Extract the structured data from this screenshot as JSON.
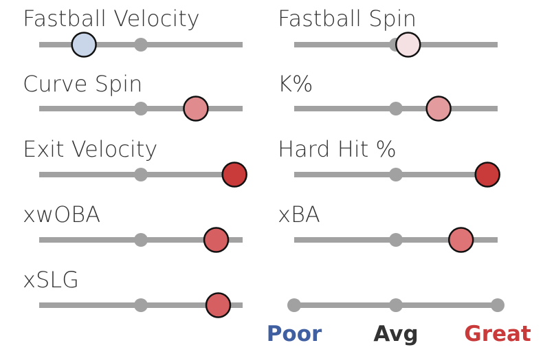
{
  "chart_data": {
    "type": "percentile-slider",
    "scale": {
      "min": 0,
      "avg": 50,
      "max": 100
    },
    "metrics": [
      {
        "name": "Fastball Velocity",
        "percentile": 22,
        "color": "#c9d6ea"
      },
      {
        "name": "Fastball Spin",
        "percentile": 56,
        "color": "#f5e1e4"
      },
      {
        "name": "Curve Spin",
        "percentile": 77,
        "color": "#e08c8e"
      },
      {
        "name": "K%",
        "percentile": 71,
        "color": "#e39b9d"
      },
      {
        "name": "Exit Velocity",
        "percentile": 96,
        "color": "#c93a3b"
      },
      {
        "name": "Hard Hit %",
        "percentile": 95,
        "color": "#c93a3b"
      },
      {
        "name": "xwOBA",
        "percentile": 87,
        "color": "#d65f62"
      },
      {
        "name": "xBA",
        "percentile": 82,
        "color": "#df7476"
      },
      {
        "name": "xSLG",
        "percentile": 88,
        "color": "#d65f62"
      }
    ],
    "legend": [
      {
        "label": "Poor",
        "color": "#3f5fa0"
      },
      {
        "label": "Avg",
        "color": "#333333"
      },
      {
        "label": "Great",
        "color": "#c93a3b"
      }
    ],
    "colors": {
      "track": "#a1a1a1",
      "marker_outline": "#111111"
    }
  }
}
